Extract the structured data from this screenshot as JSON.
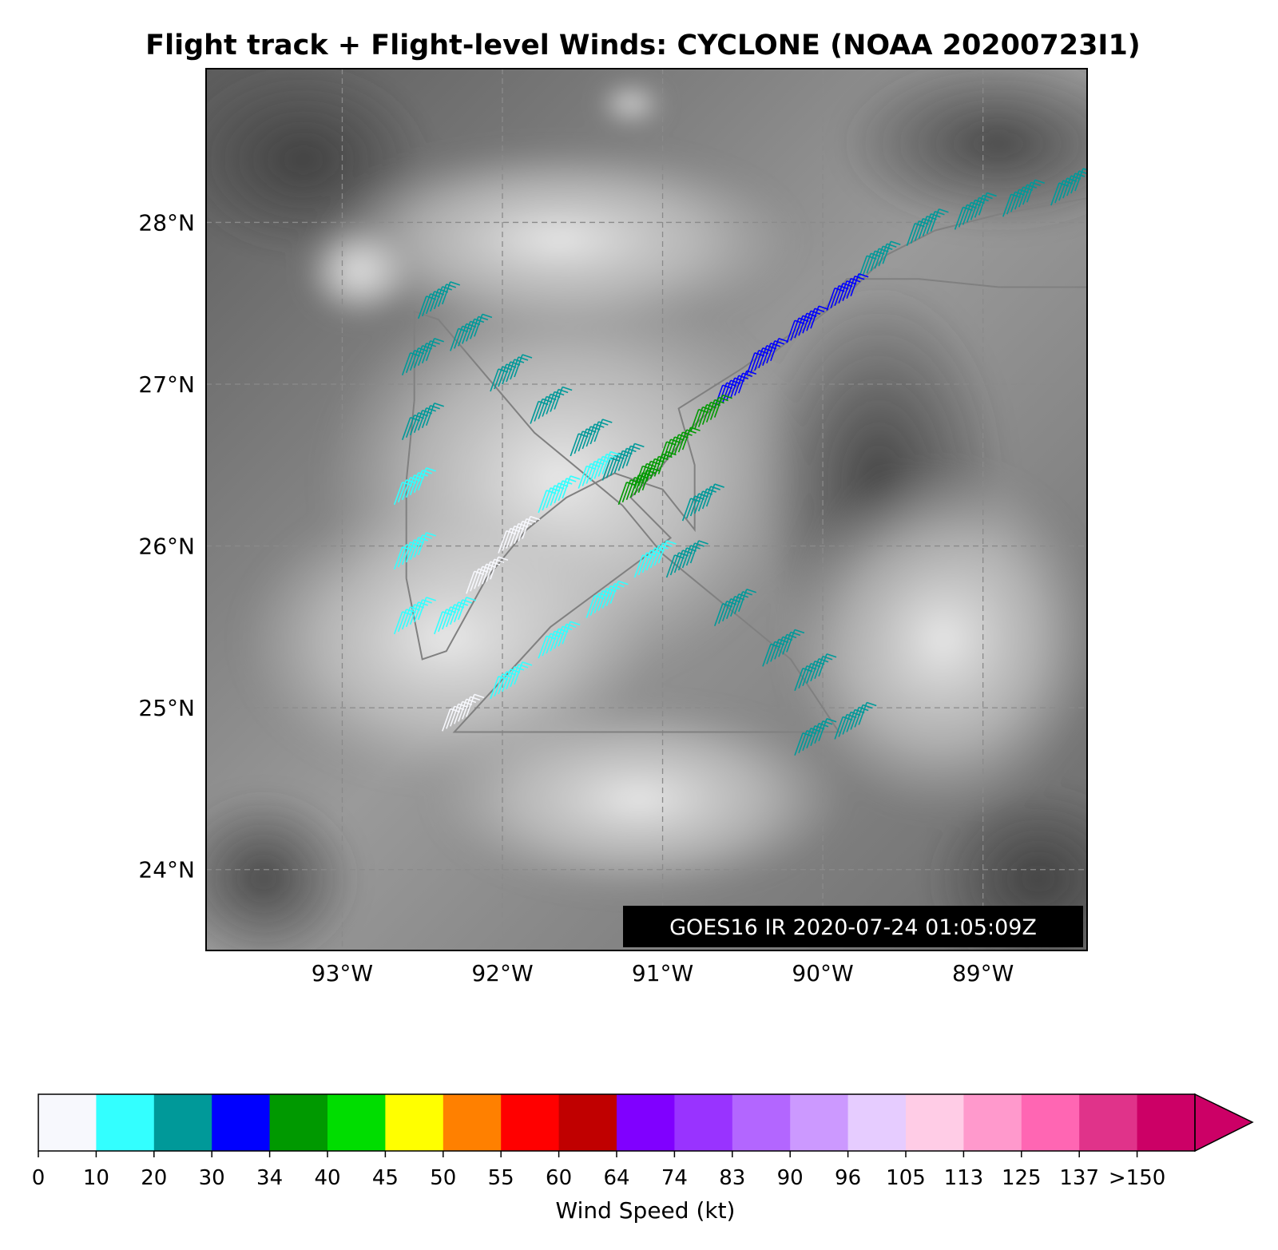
{
  "title": "Flight track + Flight-level Winds: CYCLONE (NOAA 20200723I1)",
  "timestamp": "GOES16 IR 2020-07-24 01:05:09Z",
  "axes": {
    "x_ticks": [
      "93°W",
      "92°W",
      "91°W",
      "90°W",
      "89°W"
    ],
    "y_ticks": [
      "28°N",
      "27°N",
      "26°N",
      "25°N",
      "24°N"
    ]
  },
  "colorbar": {
    "label": "Wind Speed (kt)",
    "ticks": [
      "0",
      "10",
      "20",
      "30",
      "34",
      "40",
      "45",
      "50",
      "55",
      "60",
      "64",
      "74",
      "83",
      "90",
      "96",
      "105",
      "113",
      "125",
      "137",
      ">150"
    ],
    "colors": [
      "#f7f8fd",
      "#33ffff",
      "#009999",
      "#0000ff",
      "#009900",
      "#00dd00",
      "#ffff00",
      "#ff8000",
      "#ff0000",
      "#c00000",
      "#8000ff",
      "#9933ff",
      "#b366ff",
      "#cc99ff",
      "#e6ccff",
      "#ffcce6",
      "#ff99cc",
      "#ff66b3",
      "#e0338a",
      "#cc0066"
    ]
  },
  "chart_data": {
    "type": "map",
    "lon_range": [
      -93.85,
      -88.35
    ],
    "lat_range": [
      23.5,
      28.95
    ],
    "grid": true,
    "background": "GOES16 IR",
    "track_color": "#808080",
    "flight_track": [
      [
        -88.35,
        28.15
      ],
      [
        -88.9,
        28.05
      ],
      [
        -89.3,
        27.95
      ],
      [
        -89.6,
        27.8
      ],
      [
        -89.85,
        27.55
      ],
      [
        -90.3,
        27.2
      ],
      [
        -90.8,
        26.75
      ],
      [
        -91.0,
        26.5
      ],
      [
        -91.2,
        26.3
      ],
      [
        -90.95,
        26.05
      ],
      [
        -91.7,
        25.5
      ],
      [
        -92.3,
        24.85
      ],
      [
        -92.0,
        24.85
      ],
      [
        -90.9,
        24.85
      ],
      [
        -89.9,
        24.85
      ],
      [
        -90.2,
        25.3
      ],
      [
        -91.0,
        25.95
      ],
      [
        -91.25,
        26.25
      ],
      [
        -91.8,
        26.7
      ],
      [
        -92.4,
        27.4
      ],
      [
        -92.55,
        27.45
      ],
      [
        -92.55,
        26.9
      ],
      [
        -92.6,
        26.4
      ],
      [
        -92.6,
        25.8
      ],
      [
        -92.5,
        25.3
      ],
      [
        -92.35,
        25.35
      ],
      [
        -92.1,
        25.8
      ],
      [
        -91.85,
        26.1
      ],
      [
        -91.6,
        26.3
      ],
      [
        -91.3,
        26.45
      ],
      [
        -91.0,
        26.35
      ],
      [
        -90.8,
        26.1
      ],
      [
        -90.8,
        26.5
      ],
      [
        -90.9,
        26.85
      ],
      [
        -90.5,
        27.1
      ],
      [
        -90.0,
        27.45
      ],
      [
        -89.85,
        27.65
      ],
      [
        -89.4,
        27.65
      ],
      [
        -88.9,
        27.6
      ],
      [
        -88.35,
        27.6
      ]
    ],
    "wind_barbs": [
      {
        "lon": -88.5,
        "lat": 28.15,
        "kt": 22
      },
      {
        "lon": -88.8,
        "lat": 28.08,
        "kt": 22
      },
      {
        "lon": -89.1,
        "lat": 28.0,
        "kt": 22
      },
      {
        "lon": -89.4,
        "lat": 27.9,
        "kt": 24
      },
      {
        "lon": -89.7,
        "lat": 27.7,
        "kt": 24
      },
      {
        "lon": -89.9,
        "lat": 27.5,
        "kt": 31
      },
      {
        "lon": -90.15,
        "lat": 27.3,
        "kt": 32
      },
      {
        "lon": -90.4,
        "lat": 27.1,
        "kt": 32
      },
      {
        "lon": -90.6,
        "lat": 26.9,
        "kt": 33
      },
      {
        "lon": -90.75,
        "lat": 26.75,
        "kt": 36
      },
      {
        "lon": -90.95,
        "lat": 26.55,
        "kt": 35
      },
      {
        "lon": -91.1,
        "lat": 26.4,
        "kt": 37
      },
      {
        "lon": -91.2,
        "lat": 26.3,
        "kt": 38
      },
      {
        "lon": -91.3,
        "lat": 26.45,
        "kt": 20
      },
      {
        "lon": -91.5,
        "lat": 26.6,
        "kt": 22
      },
      {
        "lon": -91.75,
        "lat": 26.8,
        "kt": 22
      },
      {
        "lon": -92.0,
        "lat": 27.0,
        "kt": 21
      },
      {
        "lon": -92.25,
        "lat": 27.25,
        "kt": 21
      },
      {
        "lon": -92.45,
        "lat": 27.45,
        "kt": 20
      },
      {
        "lon": -92.55,
        "lat": 27.1,
        "kt": 20
      },
      {
        "lon": -92.55,
        "lat": 26.7,
        "kt": 20
      },
      {
        "lon": -92.6,
        "lat": 26.3,
        "kt": 15
      },
      {
        "lon": -92.6,
        "lat": 25.9,
        "kt": 15
      },
      {
        "lon": -92.6,
        "lat": 25.5,
        "kt": 15
      },
      {
        "lon": -92.35,
        "lat": 25.5,
        "kt": 14
      },
      {
        "lon": -92.15,
        "lat": 25.75,
        "kt": 9
      },
      {
        "lon": -91.95,
        "lat": 26.0,
        "kt": 9
      },
      {
        "lon": -91.7,
        "lat": 26.25,
        "kt": 15
      },
      {
        "lon": -91.45,
        "lat": 26.4,
        "kt": 15
      },
      {
        "lon": -90.8,
        "lat": 26.2,
        "kt": 22
      },
      {
        "lon": -91.1,
        "lat": 25.85,
        "kt": 15
      },
      {
        "lon": -91.4,
        "lat": 25.6,
        "kt": 15
      },
      {
        "lon": -91.7,
        "lat": 25.35,
        "kt": 15
      },
      {
        "lon": -92.0,
        "lat": 25.1,
        "kt": 15
      },
      {
        "lon": -92.3,
        "lat": 24.9,
        "kt": 9
      },
      {
        "lon": -90.9,
        "lat": 25.85,
        "kt": 22
      },
      {
        "lon": -90.6,
        "lat": 25.55,
        "kt": 22
      },
      {
        "lon": -90.3,
        "lat": 25.3,
        "kt": 22
      },
      {
        "lon": -90.1,
        "lat": 25.15,
        "kt": 22
      },
      {
        "lon": -89.85,
        "lat": 24.85,
        "kt": 22
      },
      {
        "lon": -90.1,
        "lat": 24.75,
        "kt": 22
      }
    ]
  }
}
